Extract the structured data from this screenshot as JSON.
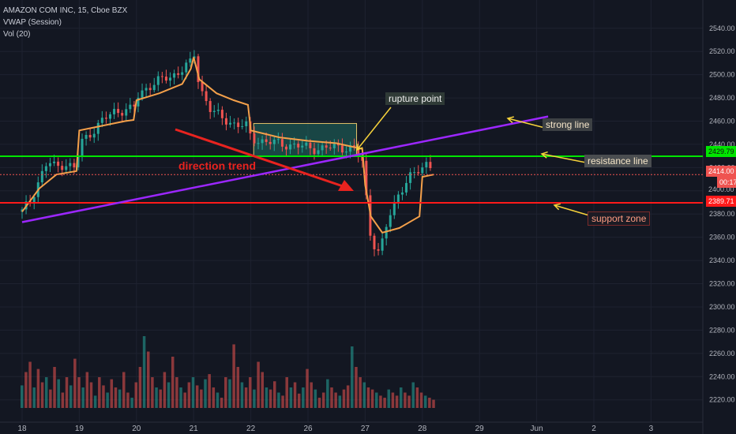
{
  "legend": {
    "symbol_line": "AMAZON COM INC, 15, Cboe BZX",
    "vwap_line": "VWAP (Session)",
    "vol_line": "Vol (20)"
  },
  "annotations": {
    "rupture_point": "rupture point",
    "strong_line": "strong line",
    "resistance_line": "resistance line",
    "support_zone": "support zone",
    "direction_trend": "direction trend"
  },
  "price_tags": {
    "resistance": "2429.79",
    "last_price": "2414.00",
    "countdown": "00:17",
    "support": "2389.71",
    "partial": "2400.00"
  },
  "colors": {
    "background": "#131722",
    "up_candle": "#26a69a",
    "down_candle": "#ef5350",
    "vwap": "#f4a04a",
    "resistance": "#00e600",
    "support": "#ff1a1a",
    "trendline": "#9c27ff",
    "arrow": "#e8231f",
    "annotation_arrow": "#f6d23b",
    "consolidation_box": "#1f6e62"
  },
  "chart_data": {
    "type": "candlestick",
    "symbol": "AMAZON COM INC",
    "interval": "15",
    "exchange": "Cboe BZX",
    "x_ticks": [
      "18",
      "19",
      "20",
      "21",
      "22",
      "26",
      "27",
      "28",
      "29",
      "Jun",
      "2",
      "3"
    ],
    "y_ticks": [
      2220,
      2240,
      2260,
      2280,
      2300,
      2320,
      2340,
      2360,
      2380,
      2400,
      2420,
      2440,
      2460,
      2480,
      2500,
      2520,
      2540
    ],
    "ylim": [
      2213,
      2548
    ],
    "grid": true,
    "horizontal_lines": {
      "resistance": 2429.79,
      "support": 2389.71,
      "last_price": 2414.0
    },
    "trendline": {
      "start": {
        "day_index": 0,
        "price": 2373
      },
      "end": {
        "day_index": 9.2,
        "price": 2464
      }
    },
    "consolidation_zone": {
      "from_day_index": 4.05,
      "to_day_index": 5.85,
      "price_low": 2430,
      "price_high": 2458
    },
    "close_path": [
      [
        0,
        2382
      ],
      [
        0.15,
        2392
      ],
      [
        0.3,
        2410
      ],
      [
        0.45,
        2425
      ],
      [
        0.6,
        2420
      ],
      [
        0.75,
        2424
      ],
      [
        0.95,
        2418
      ],
      [
        1.0,
        2440
      ],
      [
        1.2,
        2450
      ],
      [
        1.4,
        2460
      ],
      [
        1.6,
        2468
      ],
      [
        1.8,
        2470
      ],
      [
        1.95,
        2470
      ],
      [
        2.0,
        2480
      ],
      [
        2.2,
        2490
      ],
      [
        2.4,
        2495
      ],
      [
        2.6,
        2498
      ],
      [
        2.8,
        2505
      ],
      [
        2.95,
        2510
      ],
      [
        3.0,
        2520
      ],
      [
        3.1,
        2490
      ],
      [
        3.3,
        2470
      ],
      [
        3.5,
        2462
      ],
      [
        3.7,
        2458
      ],
      [
        3.95,
        2455
      ],
      [
        4.0,
        2445
      ],
      [
        4.3,
        2442
      ],
      [
        4.6,
        2440
      ],
      [
        4.9,
        2438
      ],
      [
        5.2,
        2436
      ],
      [
        5.5,
        2438
      ],
      [
        5.8,
        2436
      ],
      [
        5.95,
        2425
      ],
      [
        6.0,
        2410
      ],
      [
        6.05,
        2370
      ],
      [
        6.15,
        2355
      ],
      [
        6.25,
        2345
      ],
      [
        6.4,
        2375
      ],
      [
        6.6,
        2400
      ],
      [
        6.8,
        2412
      ],
      [
        6.95,
        2418
      ],
      [
        7.0,
        2420
      ],
      [
        7.1,
        2426
      ],
      [
        7.2,
        2418
      ]
    ],
    "vwap_path": [
      [
        0,
        2382
      ],
      [
        0.3,
        2402
      ],
      [
        0.6,
        2414
      ],
      [
        0.95,
        2417
      ],
      [
        1.0,
        2452
      ],
      [
        1.4,
        2456
      ],
      [
        1.8,
        2460
      ],
      [
        1.95,
        2461
      ],
      [
        2.0,
        2478
      ],
      [
        2.4,
        2484
      ],
      [
        2.8,
        2492
      ],
      [
        2.95,
        2505
      ],
      [
        3.0,
        2515
      ],
      [
        3.1,
        2496
      ],
      [
        3.4,
        2484
      ],
      [
        3.7,
        2478
      ],
      [
        3.95,
        2474
      ],
      [
        4.0,
        2452
      ],
      [
        4.5,
        2446
      ],
      [
        5.0,
        2443
      ],
      [
        5.5,
        2441
      ],
      [
        5.95,
        2436
      ],
      [
        6.0,
        2405
      ],
      [
        6.1,
        2378
      ],
      [
        6.3,
        2364
      ],
      [
        6.6,
        2368
      ],
      [
        6.95,
        2378
      ],
      [
        7.0,
        2412
      ],
      [
        7.2,
        2414
      ]
    ],
    "volume_relative": [
      0.22,
      0.35,
      0.45,
      0.2,
      0.38,
      0.25,
      0.3,
      0.18,
      0.4,
      0.28,
      0.15,
      0.3,
      0.22,
      0.48,
      0.3,
      0.2,
      0.35,
      0.25,
      0.12,
      0.3,
      0.22,
      0.15,
      0.28,
      0.2,
      0.18,
      0.35,
      0.15,
      0.1,
      0.25,
      0.4,
      0.7,
      0.55,
      0.3,
      0.2,
      0.18,
      0.35,
      0.25,
      0.5,
      0.3,
      0.2,
      0.15,
      0.25,
      0.3,
      0.22,
      0.18,
      0.28,
      0.33,
      0.2,
      0.15,
      0.1,
      0.3,
      0.28,
      0.62,
      0.4,
      0.25,
      0.2,
      0.3,
      0.18,
      0.45,
      0.35,
      0.2,
      0.18,
      0.26,
      0.15,
      0.12,
      0.3,
      0.2,
      0.25,
      0.14,
      0.2,
      0.38,
      0.25,
      0.18,
      0.1,
      0.15,
      0.28,
      0.2,
      0.15,
      0.12,
      0.18,
      0.22,
      0.6,
      0.4,
      0.3,
      0.25,
      0.2,
      0.18,
      0.15,
      0.12,
      0.1,
      0.18,
      0.15,
      0.12,
      0.2,
      0.15,
      0.12,
      0.25,
      0.2,
      0.15,
      0.12,
      0.1,
      0.08
    ]
  }
}
